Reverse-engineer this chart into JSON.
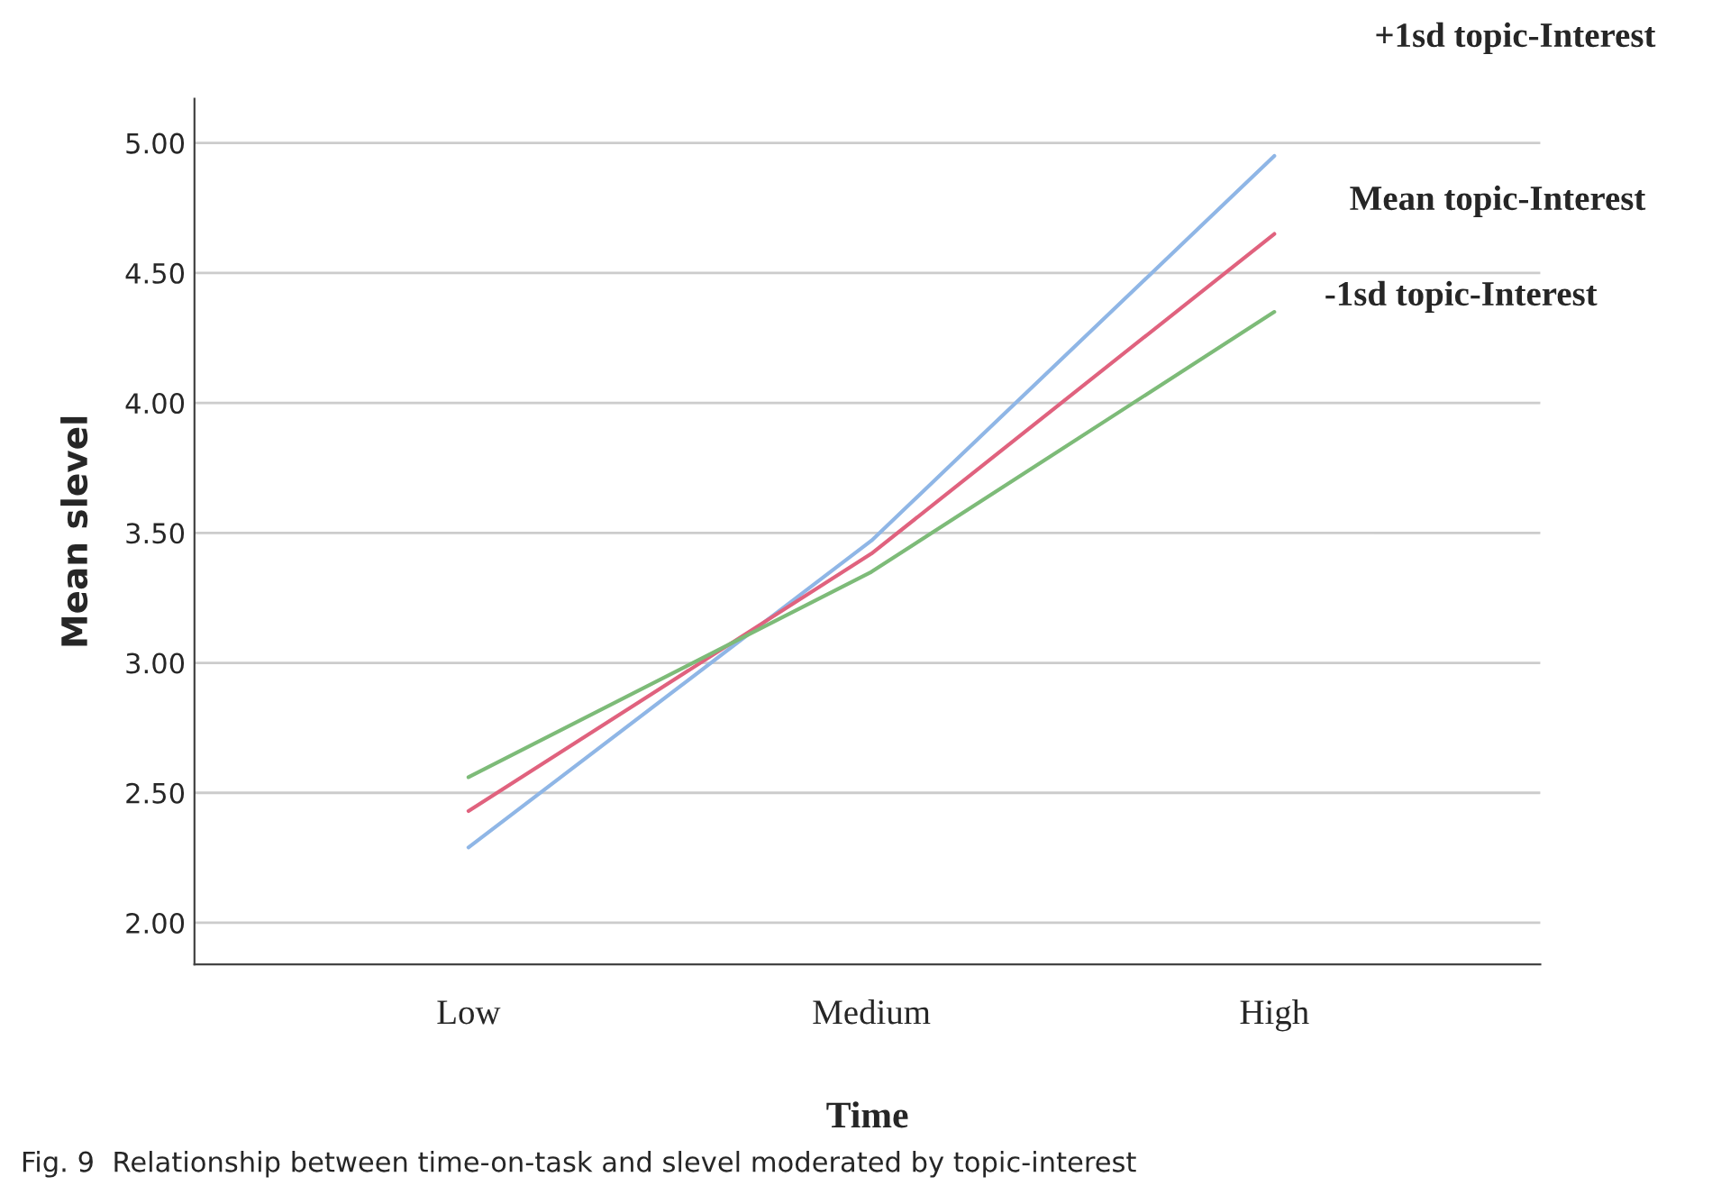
{
  "chart_data": {
    "type": "line",
    "xlabel": "Time",
    "ylabel": "Mean slevel",
    "categories": [
      "Low",
      "Medium",
      "High"
    ],
    "series": [
      {
        "name": "+1sd topic-Interest",
        "color": "#8fb6e6",
        "values": [
          2.29,
          3.47,
          4.95
        ]
      },
      {
        "name": "Mean topic-Interest",
        "color": "#e0627e",
        "values": [
          2.43,
          3.42,
          4.65
        ]
      },
      {
        "name": "-1sd topic-Interest",
        "color": "#7dbb78",
        "values": [
          2.56,
          3.35,
          4.35
        ]
      }
    ],
    "ylim": [
      1.84,
      5.17
    ],
    "yticks": [
      {
        "value": 2,
        "label": "2.00"
      },
      {
        "value": 2.5,
        "label": "2.50"
      },
      {
        "value": 3,
        "label": "3.00"
      },
      {
        "value": 3.5,
        "label": "3.50"
      },
      {
        "value": 4,
        "label": "4.00"
      },
      {
        "value": 4.5,
        "label": "4.50"
      },
      {
        "value": 5,
        "label": "5.00"
      }
    ],
    "grid": "y",
    "legend": false,
    "marker": "none",
    "line_style": "solid",
    "annotations": [
      "Fig. 9  Relationship between time-on-task and slevel moderated by topic-interest"
    ]
  }
}
